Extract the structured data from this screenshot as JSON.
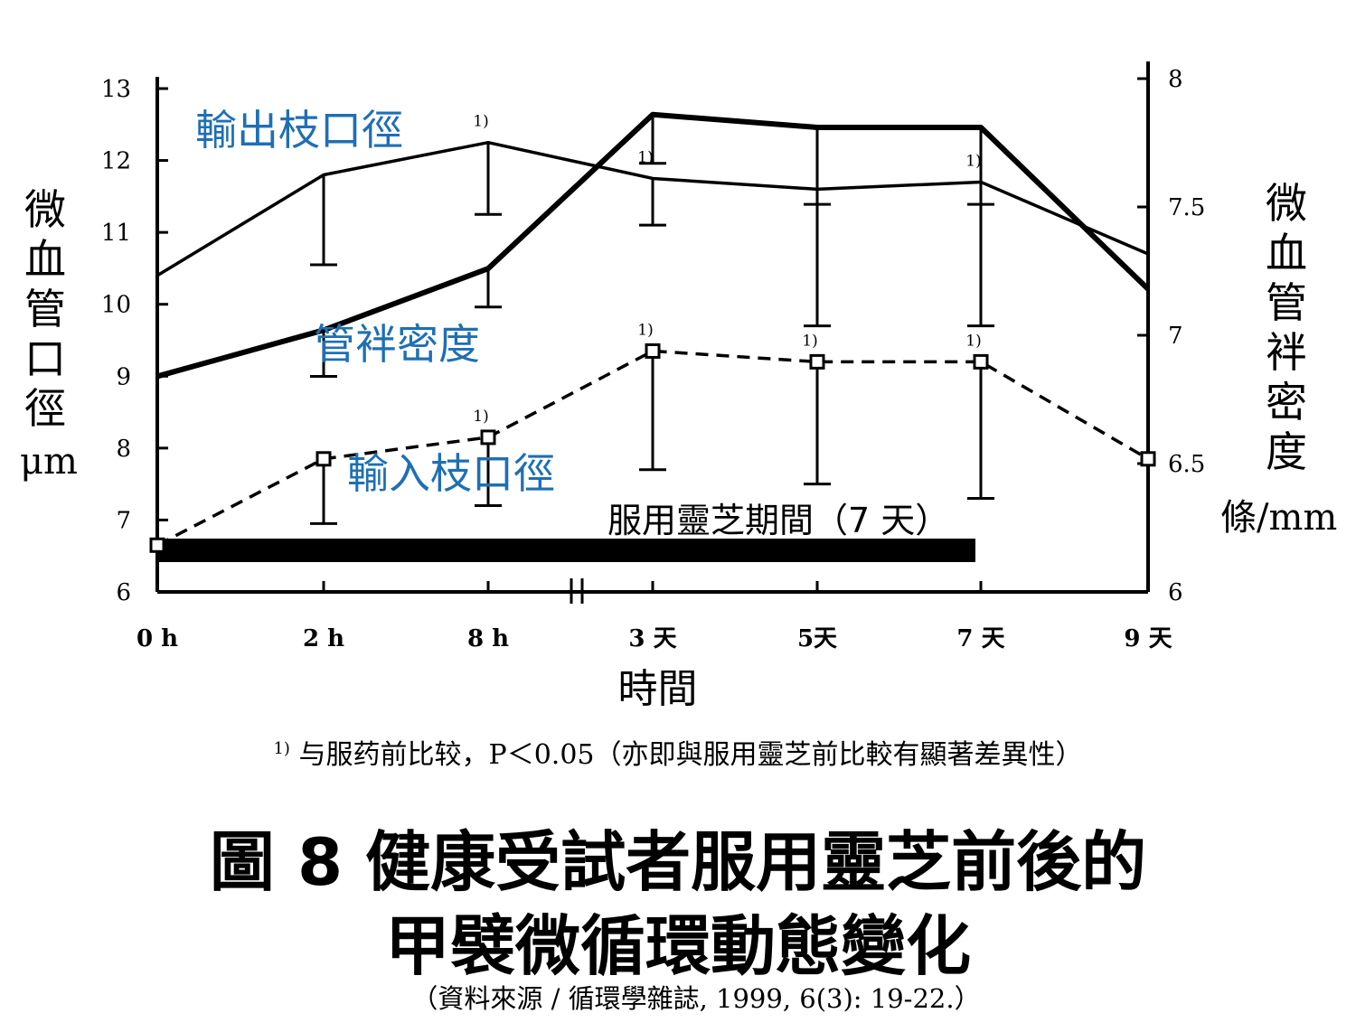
{
  "chart_data": {
    "type": "line",
    "categories": [
      "0 h",
      "2 h",
      "8 h",
      "3 天",
      "5天",
      "7 天",
      "9 天"
    ],
    "axis_break_between": [
      "8 h",
      "3 天"
    ],
    "y_left": {
      "label": "微血管口徑",
      "unit": "μm",
      "range": [
        6,
        13
      ],
      "ticks": [
        "6",
        "7",
        "8",
        "9",
        "10",
        "11",
        "12",
        "13"
      ]
    },
    "y_right": {
      "label": "微血管袢密度",
      "unit": "條/mm",
      "range": [
        6,
        8
      ],
      "ticks": [
        "6",
        "6.5",
        "7",
        "7.5",
        "8"
      ]
    },
    "x_label": "時間",
    "series": [
      {
        "name": "輸出枝口徑",
        "axis": "left",
        "style": "solid",
        "values": [
          10.4,
          11.8,
          12.25,
          11.75,
          11.6,
          11.7,
          10.7
        ],
        "error_low": [
          null,
          10.55,
          11.25,
          11.1,
          9.7,
          9.7,
          null
        ],
        "significance": [
          null,
          null,
          "1)",
          "1)",
          null,
          "1)",
          null
        ]
      },
      {
        "name": "管袢密度",
        "axis": "right",
        "style": "bold",
        "values": [
          6.84,
          7.02,
          7.26,
          7.86,
          7.81,
          7.81,
          7.18
        ],
        "error_low": [
          null,
          6.84,
          7.11,
          7.67,
          7.51,
          7.51,
          null
        ],
        "significance": [
          null,
          null,
          null,
          null,
          null,
          null,
          null
        ]
      },
      {
        "name": "輸入枝口徑",
        "axis": "left",
        "style": "dashed",
        "values": [
          6.65,
          7.85,
          8.15,
          9.35,
          9.2,
          9.2,
          7.85
        ],
        "error_low": [
          null,
          6.95,
          7.2,
          7.7,
          7.5,
          7.3,
          null
        ],
        "significance": [
          null,
          null,
          "1)",
          "1)",
          "1)",
          "1)",
          null
        ]
      }
    ],
    "period_bar": {
      "label": "服用靈芝期間（7 天）",
      "from": "0 h",
      "to": "7 天"
    },
    "significance_marker": "1)"
  },
  "labels": {
    "y_left_title": "微血管口徑",
    "y_left_unit": "μm",
    "y_right_title": "微血管袢密度",
    "y_right_unit": "條/mm",
    "x_title": "時間"
  },
  "footnote": {
    "marker": "1)",
    "text": "与服药前比较，P＜0.05（亦即與服用靈芝前比較有顯著差異性）"
  },
  "figure_title": {
    "line1": "圖 8  健康受試者服用靈芝前後的",
    "line2": "甲襞微循環動態變化"
  },
  "source": "（資料來源 / 循環學雜誌, 1999, 6(3): 19-22.）",
  "colors": {
    "series_label": "#1f6fb4",
    "lines": "#000000"
  }
}
